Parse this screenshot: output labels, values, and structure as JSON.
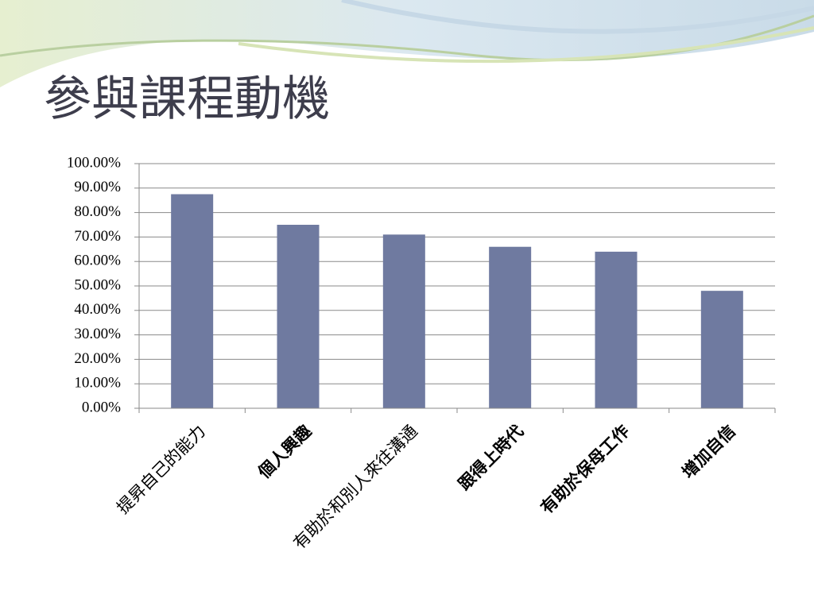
{
  "chart_data": {
    "type": "bar",
    "title": "參與課程動機",
    "categories": [
      "提昇自己的能力",
      "個人興趣",
      "有助於和別人來往溝通",
      "跟得上時代",
      "有助於保母工作",
      "增加自信"
    ],
    "values": [
      87.5,
      75,
      71,
      66,
      64,
      48
    ],
    "color": "#6f7aa0",
    "ylim": [
      0,
      100
    ],
    "yticks": [
      {
        "value": 0,
        "label": "0.00%"
      },
      {
        "value": 10,
        "label": "10.00%"
      },
      {
        "value": 20,
        "label": "20.00%"
      },
      {
        "value": 30,
        "label": "30.00%"
      },
      {
        "value": 40,
        "label": "40.00%"
      },
      {
        "value": 50,
        "label": "50.00%"
      },
      {
        "value": 60,
        "label": "60.00%"
      },
      {
        "value": 70,
        "label": "70.00%"
      },
      {
        "value": 80,
        "label": "80.00%"
      },
      {
        "value": 90,
        "label": "90.00%"
      },
      {
        "value": 100,
        "label": "100.00%"
      }
    ],
    "grid": true
  }
}
